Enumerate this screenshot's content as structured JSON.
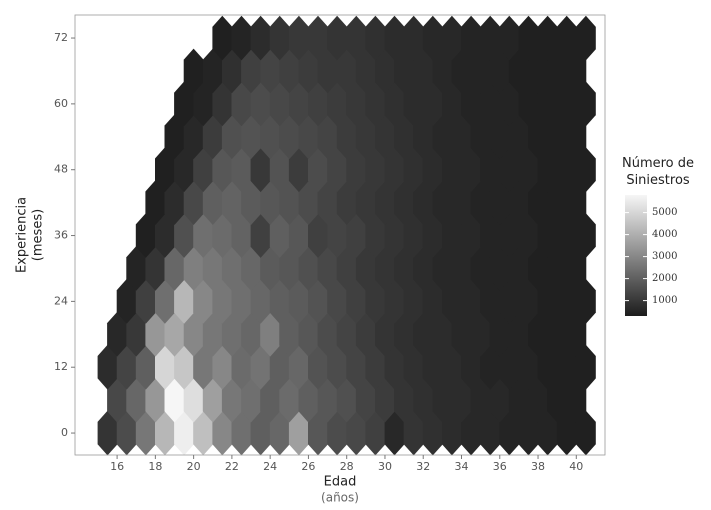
{
  "chart_data": {
    "type": "hexbin",
    "xlabel": "Edad",
    "xlabel_sub": "(años)",
    "ylabel": "Experiencia",
    "ylabel_sub": "(meses)",
    "legend_title": "Número de Siniestros",
    "xlim": [
      13.8,
      41.5
    ],
    "xticks": [
      16,
      18,
      20,
      22,
      24,
      26,
      28,
      30,
      32,
      34,
      36,
      38,
      40
    ],
    "ylim": [
      -4,
      76.2
    ],
    "yticks": [
      0,
      12,
      24,
      36,
      48,
      60,
      72
    ],
    "colorscale": {
      "low": "#1c1c1c",
      "high": "#f6f6f6",
      "lim": [
        300,
        5800
      ],
      "ticks": [
        1000,
        2000,
        3000,
        4000,
        5000
      ]
    },
    "rows": [
      {
        "y": 0,
        "x": [
          15.5,
          16.5,
          17.5,
          18.5,
          19.5,
          20.5,
          21.5,
          22.5,
          23.5,
          24.5,
          25.5,
          26.5,
          27.5,
          28.5,
          29.5,
          30.5,
          31.5,
          32.5,
          33.5,
          34.5,
          35.5,
          36.5,
          37.5,
          38.5,
          39.5,
          40.5
        ],
        "values": [
          900,
          1500,
          2600,
          4200,
          5600,
          4400,
          3000,
          2400,
          2000,
          2200,
          3600,
          1800,
          1500,
          1400,
          1200,
          600,
          900,
          800,
          700,
          600,
          600,
          500,
          500,
          500,
          400,
          400
        ]
      },
      {
        "y": 6,
        "x": [
          16,
          17,
          18,
          19,
          20,
          21,
          22,
          23,
          24,
          25,
          26,
          27,
          28,
          29,
          30,
          31,
          32,
          33,
          34,
          35,
          36,
          37,
          38,
          39,
          40
        ],
        "values": [
          1400,
          2200,
          3400,
          5800,
          5200,
          3600,
          2600,
          2400,
          2000,
          2300,
          2000,
          1800,
          1600,
          1300,
          1100,
          900,
          800,
          700,
          700,
          600,
          600,
          500,
          500,
          400,
          400
        ]
      },
      {
        "y": 12,
        "x": [
          15.5,
          16.5,
          17.5,
          18.5,
          19.5,
          20.5,
          21.5,
          22.5,
          23.5,
          24.5,
          25.5,
          26.5,
          27.5,
          28.5,
          29.5,
          30.5,
          31.5,
          32.5,
          33.5,
          34.5,
          35.5,
          36.5,
          37.5,
          38.5,
          39.5,
          40.5
        ],
        "values": [
          700,
          1300,
          2000,
          5000,
          4600,
          2600,
          3000,
          2300,
          2500,
          2000,
          2200,
          1700,
          1500,
          1300,
          1100,
          900,
          800,
          700,
          700,
          600,
          500,
          500,
          500,
          400,
          400,
          400
        ]
      },
      {
        "y": 18,
        "x": [
          16,
          17,
          18,
          19,
          20,
          21,
          22,
          23,
          24,
          25,
          26,
          27,
          28,
          29,
          30,
          31,
          32,
          33,
          34,
          35,
          36,
          37,
          38,
          39,
          40
        ],
        "values": [
          600,
          1000,
          3400,
          3800,
          3000,
          2600,
          2400,
          2200,
          2800,
          2000,
          1800,
          1500,
          1300,
          1100,
          900,
          800,
          700,
          700,
          600,
          600,
          500,
          500,
          400,
          400,
          400
        ]
      },
      {
        "y": 24,
        "x": [
          16.5,
          17.5,
          18.5,
          19.5,
          20.5,
          21.5,
          22.5,
          23.5,
          24.5,
          25.5,
          26.5,
          27.5,
          28.5,
          29.5,
          30.5,
          31.5,
          32.5,
          33.5,
          34.5,
          35.5,
          36.5,
          37.5,
          38.5,
          39.5,
          40.5
        ],
        "values": [
          500,
          1200,
          2400,
          4200,
          3000,
          2600,
          2400,
          2200,
          2000,
          1900,
          1700,
          1400,
          1200,
          1000,
          900,
          800,
          700,
          600,
          600,
          500,
          500,
          500,
          400,
          400,
          400
        ]
      },
      {
        "y": 30,
        "x": [
          17,
          18,
          19,
          20,
          21,
          22,
          23,
          24,
          25,
          26,
          27,
          28,
          29,
          30,
          31,
          32,
          33,
          34,
          35,
          36,
          37,
          38,
          39,
          40
        ],
        "values": [
          500,
          900,
          2200,
          2800,
          2600,
          2400,
          2200,
          1900,
          1800,
          1600,
          1400,
          1200,
          1000,
          900,
          800,
          700,
          600,
          600,
          500,
          500,
          500,
          400,
          400,
          400
        ]
      },
      {
        "y": 36,
        "x": [
          17.5,
          18.5,
          19.5,
          20.5,
          21.5,
          22.5,
          23.5,
          24.5,
          25.5,
          26.5,
          27.5,
          28.5,
          29.5,
          30.5,
          31.5,
          32.5,
          33.5,
          34.5,
          35.5,
          36.5,
          37.5,
          38.5,
          39.5,
          40.5
        ],
        "values": [
          400,
          700,
          1600,
          2400,
          2300,
          2100,
          1200,
          2000,
          1800,
          1200,
          1300,
          1200,
          1000,
          900,
          800,
          700,
          600,
          600,
          500,
          500,
          500,
          400,
          400,
          400
        ]
      },
      {
        "y": 42,
        "x": [
          18,
          19,
          20,
          21,
          22,
          23,
          24,
          25,
          26,
          27,
          28,
          29,
          30,
          31,
          32,
          33,
          34,
          35,
          36,
          37,
          38,
          39,
          40
        ],
        "values": [
          400,
          700,
          1400,
          2000,
          2100,
          1900,
          1800,
          1700,
          1500,
          1300,
          1100,
          1000,
          900,
          800,
          700,
          600,
          600,
          500,
          500,
          500,
          400,
          400,
          400
        ]
      },
      {
        "y": 48,
        "x": [
          18.5,
          19.5,
          20.5,
          21.5,
          22.5,
          23.5,
          24.5,
          25.5,
          26.5,
          27.5,
          28.5,
          29.5,
          30.5,
          31.5,
          32.5,
          33.5,
          34.5,
          35.5,
          36.5,
          37.5,
          38.5,
          39.5,
          40.5
        ],
        "values": [
          400,
          600,
          1200,
          1800,
          1900,
          1000,
          1700,
          1100,
          1500,
          1300,
          1100,
          1000,
          900,
          800,
          700,
          600,
          600,
          500,
          500,
          500,
          400,
          400,
          400
        ]
      },
      {
        "y": 54,
        "x": [
          19,
          20,
          21,
          22,
          23,
          24,
          25,
          26,
          27,
          28,
          29,
          30,
          31,
          32,
          33,
          34,
          35,
          36,
          37,
          38,
          39,
          40
        ],
        "values": [
          400,
          600,
          1100,
          1600,
          1700,
          1600,
          1500,
          1400,
          1300,
          1100,
          1000,
          900,
          800,
          700,
          600,
          600,
          500,
          500,
          500,
          400,
          400,
          400
        ]
      },
      {
        "y": 60,
        "x": [
          19.5,
          20.5,
          21.5,
          22.5,
          23.5,
          24.5,
          25.5,
          26.5,
          27.5,
          28.5,
          29.5,
          30.5,
          31.5,
          32.5,
          33.5,
          34.5,
          35.5,
          36.5,
          37.5,
          38.5,
          39.5,
          40.5
        ],
        "values": [
          400,
          500,
          900,
          1400,
          1500,
          1400,
          1300,
          1200,
          1100,
          1000,
          900,
          800,
          700,
          700,
          600,
          500,
          500,
          500,
          400,
          400,
          400,
          400
        ]
      },
      {
        "y": 66,
        "x": [
          20,
          21,
          22,
          23,
          24,
          25,
          26,
          27,
          28,
          29,
          30,
          31,
          32,
          33,
          34,
          35,
          36,
          37,
          38,
          39,
          40
        ],
        "values": [
          400,
          500,
          800,
          1200,
          1300,
          1200,
          1100,
          1000,
          1000,
          900,
          800,
          700,
          700,
          600,
          500,
          500,
          500,
          400,
          400,
          400,
          400
        ]
      },
      {
        "y": 72,
        "x": [
          21.5,
          22.5,
          23.5,
          24.5,
          25.5,
          26.5,
          27.5,
          28.5,
          29.5,
          30.5,
          31.5,
          32.5,
          33.5,
          34.5,
          35.5,
          36.5,
          37.5,
          38.5,
          39.5,
          40.5
        ],
        "values": [
          400,
          500,
          700,
          900,
          1000,
          1000,
          900,
          900,
          800,
          700,
          700,
          600,
          600,
          500,
          500,
          500,
          400,
          400,
          400,
          400
        ]
      }
    ]
  }
}
